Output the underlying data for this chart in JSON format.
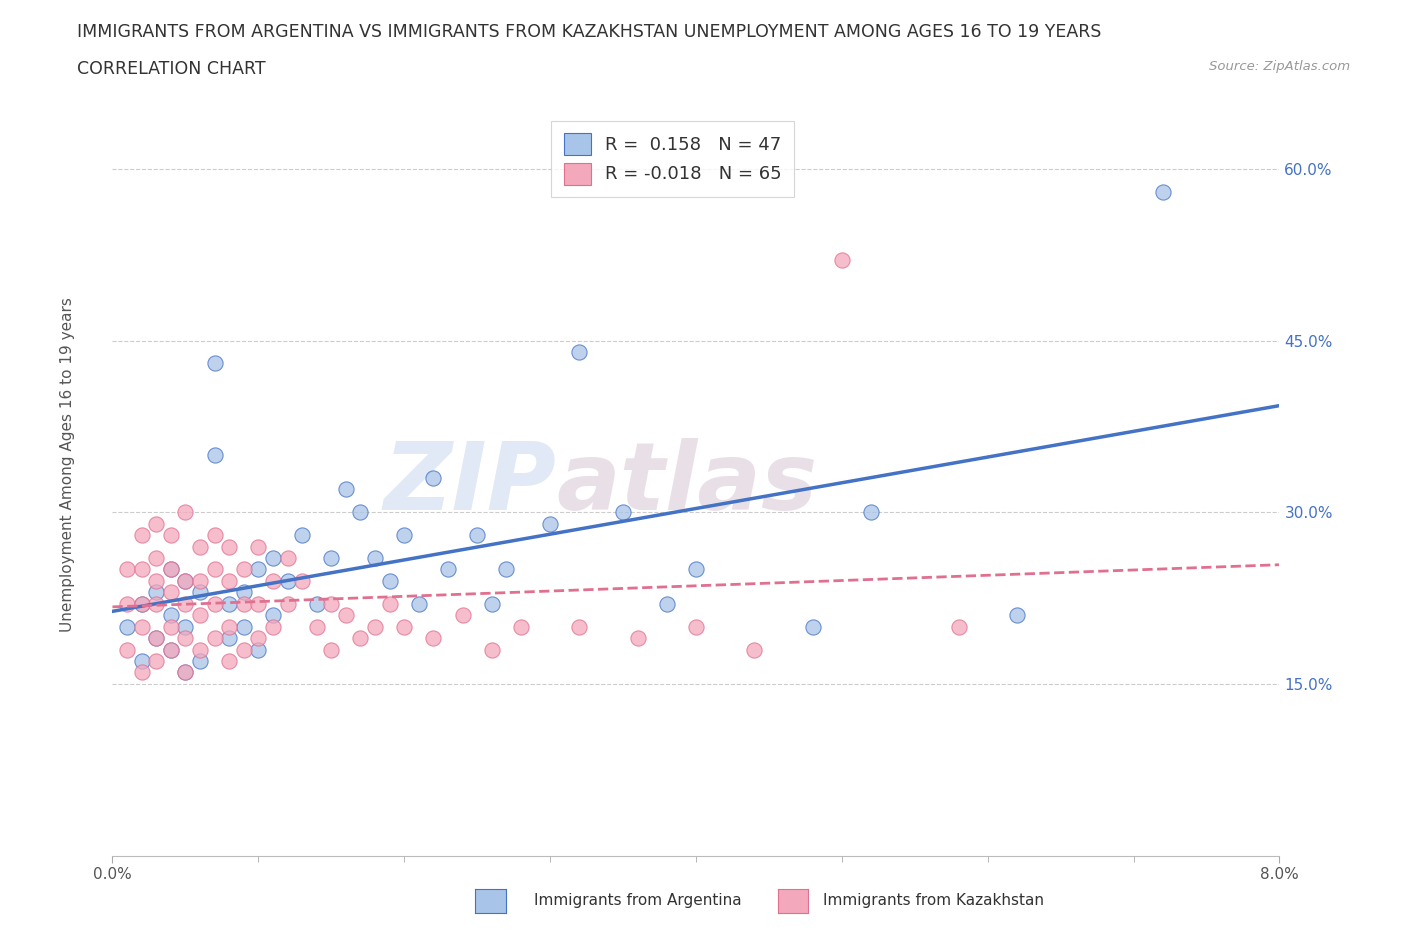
{
  "title_line1": "IMMIGRANTS FROM ARGENTINA VS IMMIGRANTS FROM KAZAKHSTAN UNEMPLOYMENT AMONG AGES 16 TO 19 YEARS",
  "title_line2": "CORRELATION CHART",
  "source": "Source: ZipAtlas.com",
  "ylabel": "Unemployment Among Ages 16 to 19 years",
  "xlim": [
    0.0,
    0.08
  ],
  "ylim": [
    0.0,
    0.65
  ],
  "y_ticks": [
    0.15,
    0.3,
    0.45,
    0.6
  ],
  "y_tick_labels": [
    "15.0%",
    "30.0%",
    "45.0%",
    "60.0%"
  ],
  "legend_r_argentina": " 0.158",
  "legend_n_argentina": "47",
  "legend_r_kazakhstan": "-0.018",
  "legend_n_kazakhstan": "65",
  "color_argentina": "#a8c4e8",
  "color_kazakhstan": "#f4a8bc",
  "line_color_argentina": "#4472c4",
  "line_color_kazakhstan": "#e07090",
  "watermark_part1": "ZIP",
  "watermark_part2": "atlas",
  "background_color": "#ffffff",
  "arg_x": [
    0.001,
    0.002,
    0.002,
    0.003,
    0.003,
    0.004,
    0.004,
    0.004,
    0.005,
    0.005,
    0.005,
    0.006,
    0.006,
    0.007,
    0.007,
    0.008,
    0.008,
    0.009,
    0.009,
    0.01,
    0.01,
    0.011,
    0.011,
    0.012,
    0.013,
    0.014,
    0.015,
    0.016,
    0.017,
    0.018,
    0.019,
    0.02,
    0.021,
    0.022,
    0.023,
    0.025,
    0.026,
    0.027,
    0.03,
    0.032,
    0.035,
    0.038,
    0.04,
    0.048,
    0.052,
    0.062,
    0.072
  ],
  "arg_y": [
    0.2,
    0.17,
    0.22,
    0.19,
    0.23,
    0.18,
    0.21,
    0.25,
    0.16,
    0.2,
    0.24,
    0.17,
    0.23,
    0.35,
    0.43,
    0.19,
    0.22,
    0.2,
    0.23,
    0.18,
    0.25,
    0.21,
    0.26,
    0.24,
    0.28,
    0.22,
    0.26,
    0.32,
    0.3,
    0.26,
    0.24,
    0.28,
    0.22,
    0.33,
    0.25,
    0.28,
    0.22,
    0.25,
    0.29,
    0.44,
    0.3,
    0.22,
    0.25,
    0.2,
    0.3,
    0.21,
    0.58
  ],
  "kaz_x": [
    0.001,
    0.001,
    0.001,
    0.002,
    0.002,
    0.002,
    0.002,
    0.002,
    0.003,
    0.003,
    0.003,
    0.003,
    0.003,
    0.003,
    0.004,
    0.004,
    0.004,
    0.004,
    0.004,
    0.005,
    0.005,
    0.005,
    0.005,
    0.005,
    0.006,
    0.006,
    0.006,
    0.006,
    0.007,
    0.007,
    0.007,
    0.007,
    0.008,
    0.008,
    0.008,
    0.008,
    0.009,
    0.009,
    0.009,
    0.01,
    0.01,
    0.01,
    0.011,
    0.011,
    0.012,
    0.012,
    0.013,
    0.014,
    0.015,
    0.015,
    0.016,
    0.017,
    0.018,
    0.019,
    0.02,
    0.022,
    0.024,
    0.026,
    0.028,
    0.032,
    0.036,
    0.04,
    0.044,
    0.05,
    0.058
  ],
  "kaz_y": [
    0.18,
    0.22,
    0.25,
    0.16,
    0.2,
    0.22,
    0.25,
    0.28,
    0.17,
    0.19,
    0.22,
    0.24,
    0.26,
    0.29,
    0.18,
    0.2,
    0.23,
    0.25,
    0.28,
    0.16,
    0.19,
    0.22,
    0.24,
    0.3,
    0.18,
    0.21,
    0.24,
    0.27,
    0.19,
    0.22,
    0.25,
    0.28,
    0.17,
    0.2,
    0.24,
    0.27,
    0.18,
    0.22,
    0.25,
    0.19,
    0.22,
    0.27,
    0.2,
    0.24,
    0.22,
    0.26,
    0.24,
    0.2,
    0.18,
    0.22,
    0.21,
    0.19,
    0.2,
    0.22,
    0.2,
    0.19,
    0.21,
    0.18,
    0.2,
    0.2,
    0.19,
    0.2,
    0.18,
    0.52,
    0.2
  ]
}
